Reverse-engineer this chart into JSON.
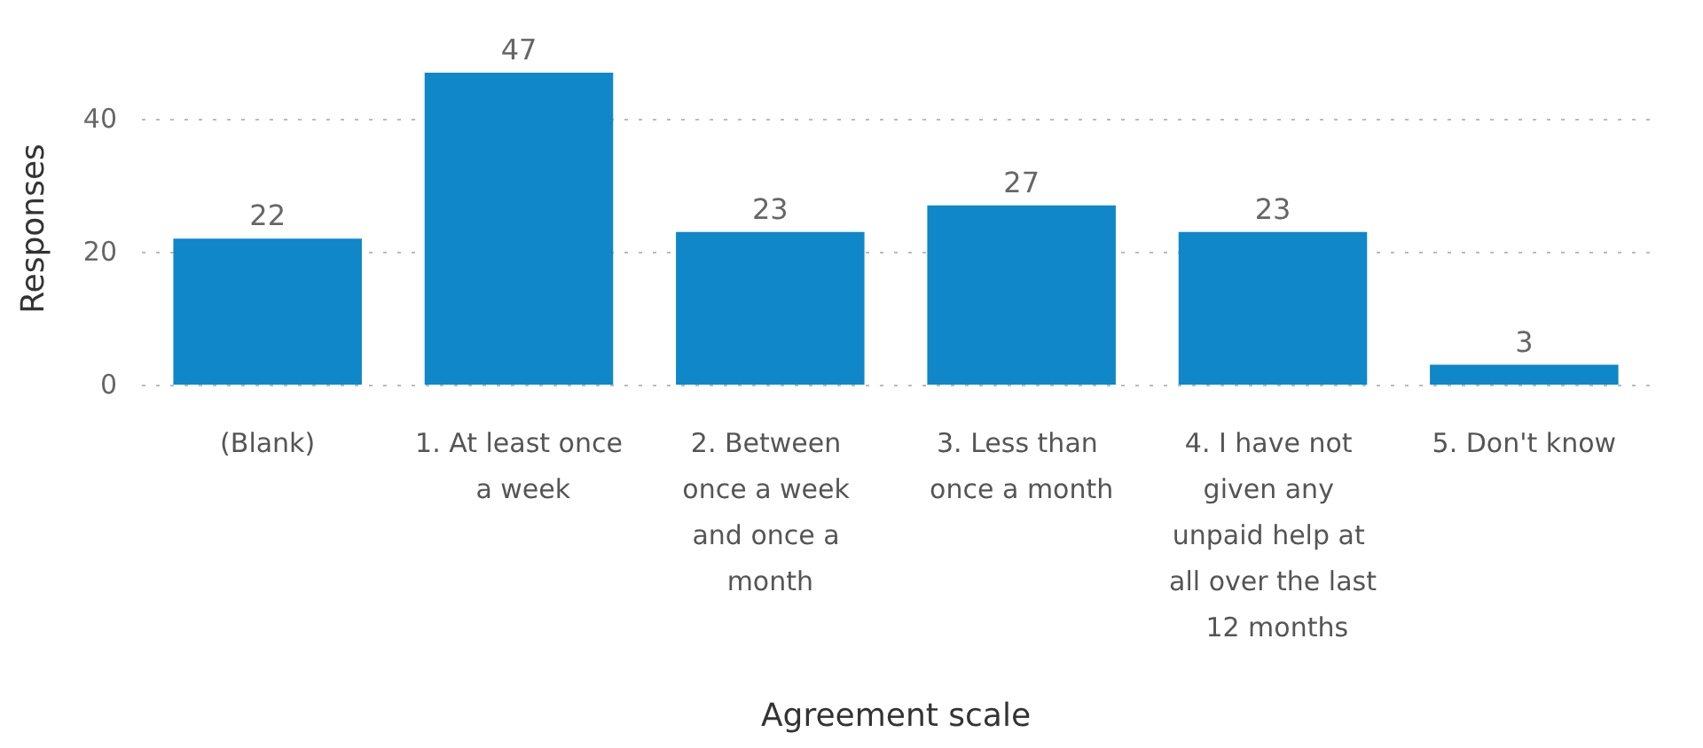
{
  "chart_data": {
    "type": "bar",
    "xlabel": "Agreement scale",
    "ylabel": "Responses",
    "categories": [
      "(Blank)",
      "1. At least once a week",
      "2. Between once a week and once a month",
      "3. Less than once a month",
      "4. I have not given any unpaid help at all over the last 12 months",
      "5. Don't know"
    ],
    "values": [
      22,
      47,
      23,
      27,
      23,
      3
    ],
    "color": "#0f87c8",
    "data_labels": true,
    "ylim": [
      0,
      47
    ],
    "yticks": [
      0,
      20,
      40
    ],
    "grid": "y"
  }
}
